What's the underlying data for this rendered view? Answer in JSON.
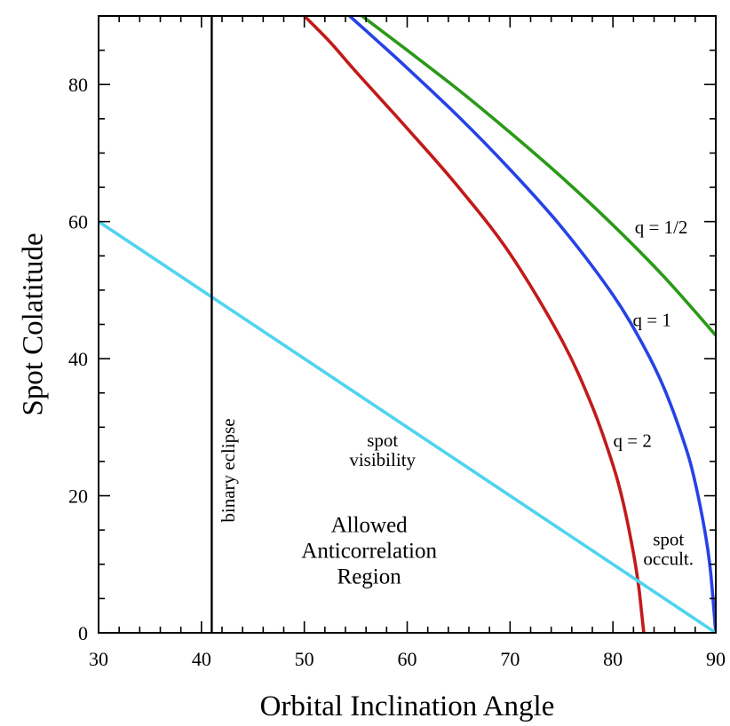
{
  "chart_data": {
    "type": "line",
    "title": "",
    "xlabel": "Orbital Inclination Angle",
    "ylabel": "Spot Colatitude",
    "xlim": [
      30,
      90
    ],
    "ylim": [
      0,
      90
    ],
    "x_ticks": [
      30,
      40,
      50,
      60,
      70,
      80,
      90
    ],
    "y_ticks": [
      0,
      20,
      40,
      60,
      80
    ],
    "x_minor_step": 2,
    "y_minor_step": 5,
    "grid": false,
    "series": [
      {
        "name": "q = 1/2",
        "label": "q = 1/2",
        "color": "#2a9a17",
        "x": [
          55.6,
          60,
          65,
          70,
          75,
          80,
          85,
          90
        ],
        "y": [
          90,
          85.0,
          79.2,
          73.0,
          66.5,
          59.5,
          51.9,
          43.4
        ]
      },
      {
        "name": "q = 1",
        "label": "q = 1",
        "color": "#2642e6",
        "x": [
          54.4,
          57,
          60,
          65,
          70,
          75,
          80,
          83,
          85,
          87,
          88,
          89,
          89.5,
          90
        ],
        "y": [
          90,
          86.5,
          82.4,
          75.3,
          67.6,
          59.2,
          49.3,
          41.8,
          35.6,
          27.4,
          21.9,
          14.3,
          8.8,
          0
        ]
      },
      {
        "name": "q = 2",
        "label": "q = 2",
        "color": "#c21a1a",
        "x": [
          50,
          52.5,
          55,
          60,
          65,
          70,
          75,
          78,
          80,
          81,
          82,
          82.5,
          82.8,
          83
        ],
        "y": [
          90,
          86.2,
          81.9,
          73.6,
          65.0,
          55.3,
          42.8,
          33.0,
          24.5,
          19.0,
          11.6,
          6.8,
          2.8,
          0
        ]
      },
      {
        "name": "spot visibility",
        "label": "spot visibility",
        "color": "#4fd4f0",
        "x": [
          30,
          90
        ],
        "y": [
          60,
          0
        ]
      },
      {
        "name": "binary eclipse",
        "label": "binary eclipse",
        "color": "#000000",
        "x": [
          41,
          41
        ],
        "y": [
          0,
          90
        ]
      }
    ],
    "annotations": [
      {
        "id": "q-half",
        "lines": [
          "q = 1/2"
        ],
        "x": 84.7,
        "y": 59.2,
        "rotate": false
      },
      {
        "id": "q-one",
        "lines": [
          "q = 1"
        ],
        "x": 83.8,
        "y": 45.7,
        "rotate": false
      },
      {
        "id": "q-two",
        "lines": [
          "q = 2"
        ],
        "x": 81.9,
        "y": 28.1,
        "rotate": false
      },
      {
        "id": "spot-visibility",
        "lines": [
          "spot",
          "visibility"
        ],
        "x": 57.6,
        "y": 26.7,
        "rotate": false
      },
      {
        "id": "spot-occult",
        "lines": [
          "spot",
          "occult."
        ],
        "x": 85.4,
        "y": 12.3,
        "rotate": false
      },
      {
        "id": "allowed-region",
        "lines": [
          "Allowed",
          "Anticorrelation",
          "Region"
        ],
        "x": 56.3,
        "y": 12.1,
        "rotate": false
      },
      {
        "id": "binary-eclipse",
        "lines": [
          "binary eclipse"
        ],
        "x": 42.8,
        "y": 23.7,
        "rotate": true
      }
    ]
  }
}
